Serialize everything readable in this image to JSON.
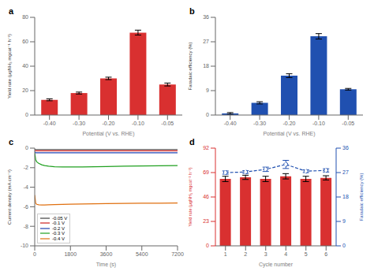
{
  "chart_data": [
    {
      "type": "bar",
      "title": "a",
      "categories": [
        "-0.40",
        "-0.30",
        "-0.20",
        "-0.10",
        "-0.05"
      ],
      "values": [
        12.5,
        18.0,
        30.0,
        67.5,
        25.0
      ],
      "errors": [
        0.8,
        0.8,
        1.0,
        2.0,
        1.2
      ],
      "color": "#d93030",
      "ylim": [
        0,
        80
      ],
      "yticks": [
        0,
        20,
        40,
        60,
        80
      ],
      "ylabel": "Yield rate (μgNH₃ mgcat⁻¹ h⁻¹)",
      "xlabel": "Potential (V vs. RHE)",
      "grid": false
    },
    {
      "type": "bar",
      "title": "b",
      "categories": [
        "-0.40",
        "-0.30",
        "-0.20",
        "-0.10",
        "-0.05"
      ],
      "values": [
        0.6,
        4.5,
        14.5,
        29.0,
        9.5
      ],
      "errors": [
        0.3,
        0.4,
        0.7,
        1.0,
        0.3
      ],
      "color": "#2050b0",
      "ylim": [
        0,
        36
      ],
      "yticks": [
        0,
        9,
        18,
        27,
        36
      ],
      "ylabel": "Faradaic efficiency (%)",
      "xlabel": "Potential (V vs. RHE)",
      "grid": false
    },
    {
      "type": "line",
      "title": "c",
      "x": [
        0,
        50,
        100,
        200,
        350,
        500,
        700,
        1000,
        1400,
        1800,
        2400,
        3000,
        3600,
        4500,
        5400,
        6300,
        7200
      ],
      "series": [
        {
          "name": "-0.05 V",
          "color": "#404040",
          "values": [
            -0.12,
            -0.14,
            -0.14,
            -0.14,
            -0.14,
            -0.14,
            -0.14,
            -0.14,
            -0.14,
            -0.14,
            -0.14,
            -0.14,
            -0.14,
            -0.14,
            -0.14,
            -0.14,
            -0.14
          ]
        },
        {
          "name": "-0.1 V",
          "color": "#cc2020",
          "values": [
            -0.22,
            -0.28,
            -0.28,
            -0.28,
            -0.28,
            -0.28,
            -0.28,
            -0.28,
            -0.28,
            -0.28,
            -0.28,
            -0.28,
            -0.28,
            -0.28,
            -0.28,
            -0.28,
            -0.28
          ]
        },
        {
          "name": "-0.2 V",
          "color": "#2040b0",
          "values": [
            -0.38,
            -0.48,
            -0.48,
            -0.48,
            -0.48,
            -0.48,
            -0.48,
            -0.48,
            -0.48,
            -0.48,
            -0.48,
            -0.48,
            -0.48,
            -0.48,
            -0.48,
            -0.48,
            -0.48
          ]
        },
        {
          "name": "-0.3 V",
          "color": "#20a020",
          "values": [
            -0.5,
            -1.2,
            -1.4,
            -1.55,
            -1.7,
            -1.78,
            -1.85,
            -1.9,
            -1.92,
            -1.93,
            -1.93,
            -1.9,
            -1.88,
            -1.85,
            -1.82,
            -1.8,
            -1.78
          ]
        },
        {
          "name": "-0.4 V",
          "color": "#e07010",
          "values": [
            -4.8,
            -5.65,
            -5.75,
            -5.8,
            -5.82,
            -5.82,
            -5.8,
            -5.78,
            -5.76,
            -5.74,
            -5.72,
            -5.7,
            -5.68,
            -5.66,
            -5.64,
            -5.63,
            -5.62
          ]
        }
      ],
      "xlim": [
        0,
        7200
      ],
      "xticks": [
        0,
        1800,
        3600,
        5400,
        7200
      ],
      "ylim": [
        -10,
        0
      ],
      "yticks": [
        0,
        -2,
        -4,
        -6,
        -8,
        -10
      ],
      "ylabel": "Current density (mA cm⁻²)",
      "xlabel": "Time (s)",
      "legend": "lower left",
      "grid": false
    },
    {
      "type": "bar",
      "title": "d",
      "categories": [
        "1",
        "2",
        "3",
        "4",
        "5",
        "6"
      ],
      "series": [
        {
          "type": "bar",
          "color": "#d93030",
          "values": [
            63.0,
            64.5,
            63.0,
            65.5,
            63.0,
            64.0
          ],
          "errors": [
            2.5,
            2.0,
            2.5,
            2.5,
            2.5,
            2.0
          ]
        },
        {
          "type": "line",
          "axis": "y2",
          "color": "#2050b0",
          "marker": "circle",
          "line_style": "dashed",
          "values": [
            27.0,
            27.2,
            28.2,
            30.0,
            27.5,
            27.8
          ],
          "errors": [
            0.6,
            0.5,
            0.8,
            1.5,
            0.5,
            0.6
          ]
        }
      ],
      "ylim": [
        0,
        92
      ],
      "yticks": [
        0,
        23,
        46,
        69,
        92
      ],
      "y2lim": [
        0,
        36
      ],
      "y2ticks": [
        0,
        9,
        18,
        27,
        36
      ],
      "ylabel": "Yield rate (μgNH₃ mgcat⁻¹ h⁻¹)",
      "y2label": "Faradaic efficiency (%)",
      "xlabel": "Cycle number",
      "grid": false
    }
  ]
}
